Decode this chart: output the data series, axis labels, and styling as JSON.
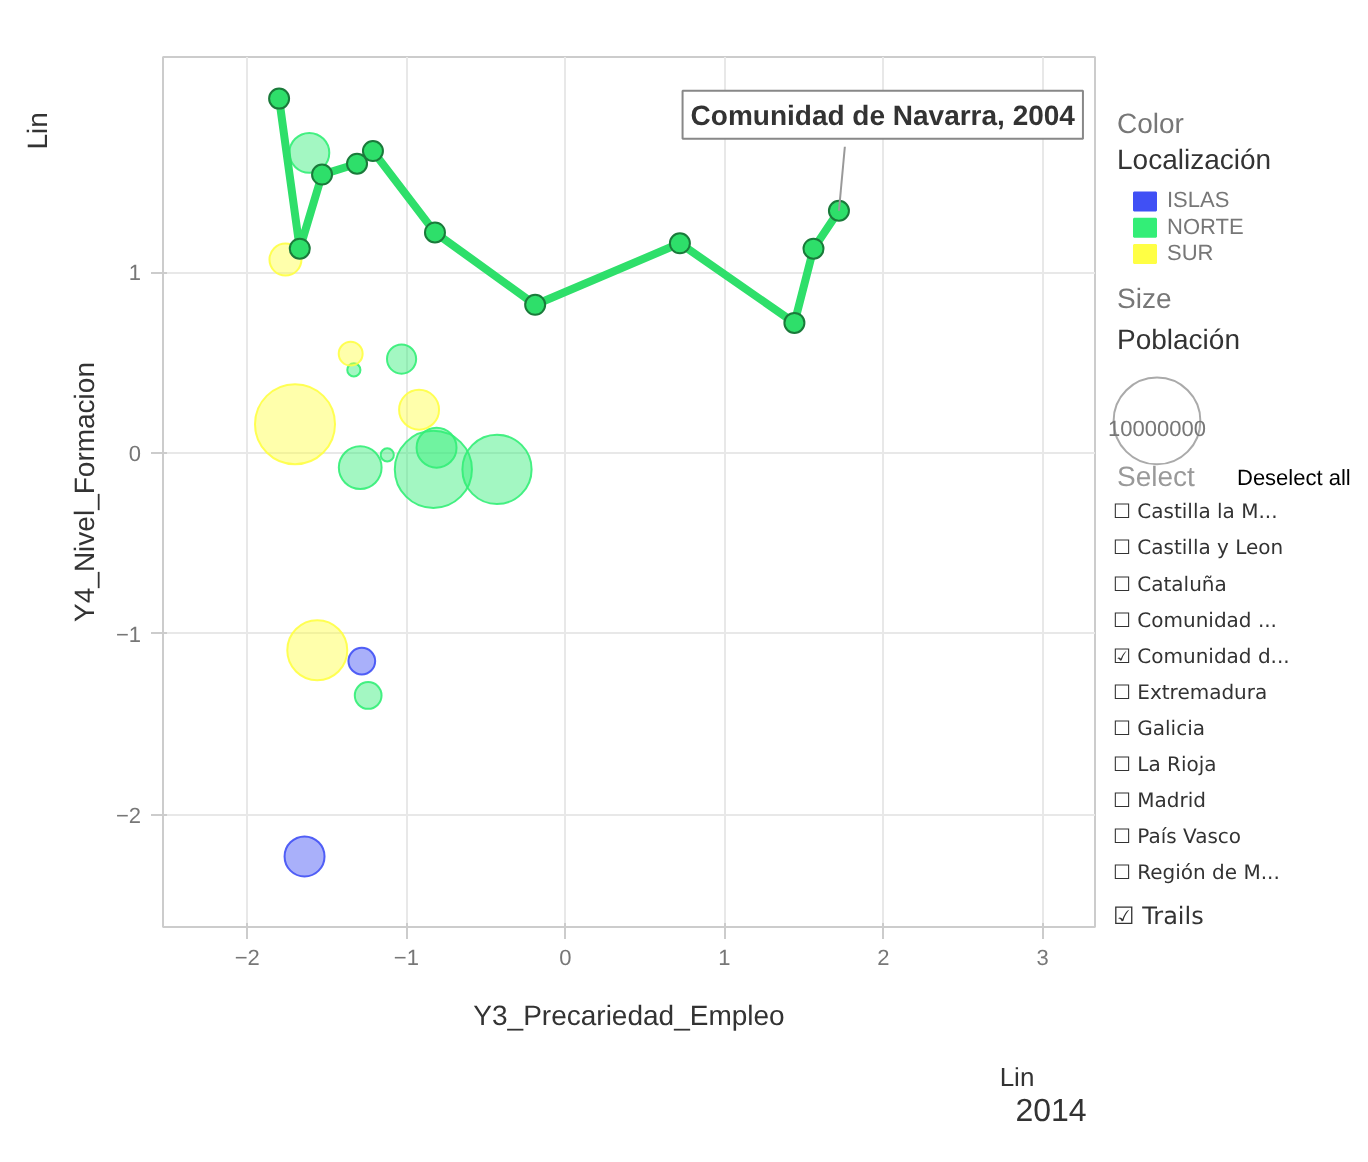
{
  "chart_data": {
    "type": "bubble",
    "xlabel": "Y3_Precariedad_Empleo",
    "ylabel": "Y4_Nivel_Formacion",
    "legend_title": "Localización",
    "xlim": [
      -2.53,
      3.33
    ],
    "ylim": [
      -2.62,
      2.19
    ],
    "xticks": [
      -2,
      -1,
      0,
      1,
      2,
      3
    ],
    "yticks": [
      -2,
      -1,
      0,
      1
    ],
    "grid": true,
    "legend": "right",
    "marker": "circle",
    "size_legend": [
      {
        "value": 10000000,
        "label": "10000000"
      }
    ],
    "series": [
      {
        "name": "ISLAS",
        "color": "#4050f5",
        "x": [
          -1.28,
          -1.64
        ],
        "values": [
          -1.15,
          -2.23
        ],
        "sizes": [
          950000,
          2120000
        ]
      },
      {
        "name": "NORTE",
        "color": "#33ee77",
        "x": [
          -1.61,
          -1.33,
          -1.03,
          -1.29,
          -1.12,
          -0.81,
          -0.83,
          -0.43,
          -1.24
        ],
        "values": [
          1.66,
          0.46,
          0.52,
          -0.08,
          -0.01,
          0.03,
          -0.09,
          -0.09,
          -1.34
        ],
        "sizes": [
          2120000,
          230000,
          1130000,
          2430000,
          230000,
          2120000,
          7900000,
          6360000,
          950000
        ]
      },
      {
        "name": "SUR",
        "color": "#ffff44",
        "x": [
          -1.76,
          -1.35,
          -1.7,
          -0.92,
          -1.56
        ],
        "values": [
          1.07,
          0.55,
          0.16,
          0.24,
          -1.09
        ],
        "sizes": [
          1360000,
          760000,
          8500000,
          2120000,
          4780000
        ]
      },
      {
        "type": "line",
        "color": "#2edf6a",
        "x": [
          1.72,
          1.56,
          1.44,
          0.72,
          -0.19,
          -0.82,
          -1.21,
          -1.31,
          -1.53,
          -1.67,
          -1.8
        ],
        "values": [
          1.34,
          1.13,
          0.72,
          1.16,
          0.82,
          1.22,
          1.67,
          1.6,
          1.54,
          1.13,
          1.96
        ]
      }
    ],
    "annotations": [
      {
        "text": "Comunidad de Navarra, 2004",
        "x": 1.72,
        "y": 1.34
      },
      "Color",
      "Size",
      "Población",
      "Select",
      "Deselect all",
      "☐ Castilla la M...",
      "☐ Castilla y Leon",
      "☐ Cataluña",
      "☐ Comunidad ...",
      "☑ Comunidad d...",
      "☐ Extremadura",
      "☐ Galicia",
      "☐ La Rioja",
      "☐ Madrid",
      "☐ País Vasco",
      "☐ Región de M...",
      "☑ Trails",
      "Lin",
      "Lin",
      "2014"
    ]
  }
}
